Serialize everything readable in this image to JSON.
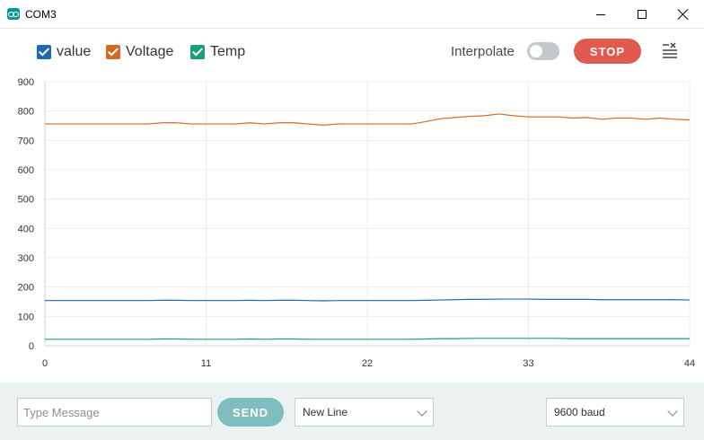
{
  "window": {
    "title": "COM3",
    "icon": "arduino-icon"
  },
  "toolbar": {
    "legend": [
      {
        "label": "value",
        "color": "#1d6bb0",
        "checked": true
      },
      {
        "label": "Voltage",
        "color": "#d46a1f",
        "checked": true
      },
      {
        "label": "Temp",
        "color": "#1a9e7e",
        "checked": true
      }
    ],
    "interpolate_label": "Interpolate",
    "interpolate_on": false,
    "stop_label": "STOP"
  },
  "chart_data": {
    "type": "line",
    "x": [
      0,
      1,
      2,
      3,
      4,
      5,
      6,
      7,
      8,
      9,
      10,
      11,
      12,
      13,
      14,
      15,
      16,
      17,
      18,
      19,
      20,
      21,
      22,
      23,
      24,
      25,
      26,
      27,
      28,
      29,
      30,
      31,
      32,
      33,
      34,
      35,
      36,
      37,
      38,
      39,
      40,
      41,
      42,
      43,
      44
    ],
    "xticks": [
      0,
      11,
      22,
      33,
      44
    ],
    "yticks": [
      0,
      100,
      200,
      300,
      400,
      500,
      600,
      700,
      800,
      900
    ],
    "xlim": [
      0,
      44
    ],
    "ylim": [
      0,
      900
    ],
    "grid": true,
    "series": [
      {
        "name": "value",
        "color": "#1d6bb0",
        "values": [
          154,
          154,
          154,
          154,
          154,
          154,
          154,
          154,
          155,
          155,
          154,
          154,
          154,
          154,
          155,
          154,
          155,
          155,
          154,
          153,
          154,
          154,
          154,
          154,
          154,
          154,
          155,
          156,
          157,
          158,
          158,
          159,
          159,
          159,
          158,
          158,
          158,
          158,
          157,
          157,
          157,
          157,
          157,
          157,
          156
        ]
      },
      {
        "name": "Voltage",
        "color": "#d46a1f",
        "values": [
          756,
          756,
          756,
          756,
          756,
          756,
          756,
          756,
          760,
          760,
          756,
          756,
          756,
          756,
          760,
          756,
          760,
          760,
          756,
          752,
          756,
          756,
          756,
          756,
          756,
          756,
          764,
          774,
          778,
          782,
          784,
          790,
          784,
          780,
          780,
          780,
          776,
          778,
          772,
          776,
          776,
          772,
          776,
          772,
          770
        ]
      },
      {
        "name": "Temp",
        "color": "#1a9e7e",
        "values": [
          22,
          22,
          22,
          22,
          22,
          22,
          22,
          22,
          23,
          23,
          22,
          22,
          22,
          22,
          23,
          22,
          23,
          23,
          22,
          22,
          22,
          22,
          22,
          22,
          22,
          22,
          23,
          24,
          24,
          25,
          25,
          25,
          25,
          25,
          25,
          25,
          24,
          24,
          24,
          24,
          24,
          24,
          24,
          24,
          24
        ]
      }
    ]
  },
  "bottom": {
    "message_placeholder": "Type Message",
    "message_value": "",
    "send_label": "SEND",
    "line_ending": "New Line",
    "baud": "9600 baud"
  }
}
